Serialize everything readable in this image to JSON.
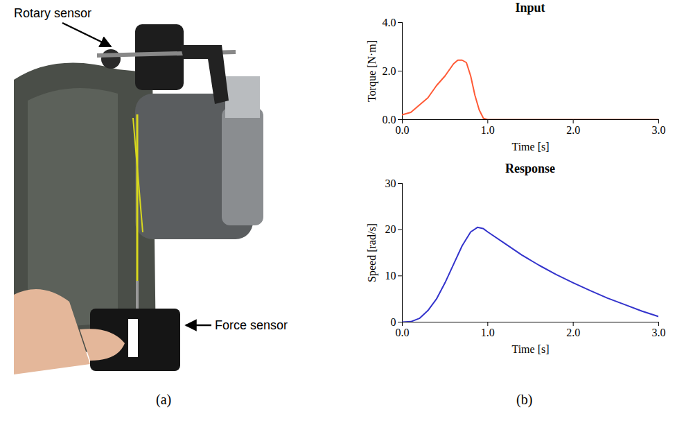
{
  "photo": {
    "annotations": [
      "Rotary sensor",
      "Force sensor"
    ]
  },
  "panel_labels": [
    "(a)",
    "(b)"
  ],
  "chart_data": [
    {
      "type": "line",
      "title": "Input",
      "xlabel": "Time [s]",
      "ylabel": "Torque [N·m]",
      "x": [
        0,
        0.1,
        0.2,
        0.3,
        0.4,
        0.5,
        0.6,
        0.65,
        0.7,
        0.75,
        0.8,
        0.85,
        0.9,
        0.95,
        1.0,
        1.5,
        2.0,
        2.5,
        3.0
      ],
      "values": [
        0.2,
        0.3,
        0.6,
        0.9,
        1.4,
        1.8,
        2.3,
        2.45,
        2.45,
        2.35,
        1.8,
        1.0,
        0.4,
        0.05,
        0,
        0,
        0,
        0,
        0
      ],
      "color": "#ff5a36",
      "xlim": [
        0,
        3
      ],
      "xticks": [
        0,
        1,
        2,
        3
      ],
      "ylim": [
        0,
        4
      ],
      "yticks": [
        0,
        2,
        4
      ],
      "grid": false
    },
    {
      "type": "line",
      "title": "Response",
      "xlabel": "Time [s]",
      "ylabel": "Speed [rad/s]",
      "x": [
        0,
        0.1,
        0.2,
        0.3,
        0.4,
        0.5,
        0.6,
        0.7,
        0.8,
        0.88,
        0.95,
        1.0,
        1.2,
        1.4,
        1.6,
        1.8,
        2.0,
        2.2,
        2.4,
        2.6,
        2.8,
        3.0
      ],
      "values": [
        0,
        0.1,
        0.8,
        2.5,
        5,
        8.5,
        12.5,
        16.5,
        19.5,
        20.5,
        20.2,
        19.5,
        17,
        14.5,
        12.3,
        10.3,
        8.5,
        6.8,
        5.2,
        3.8,
        2.4,
        1.2
      ],
      "color": "#3333cc",
      "xlim": [
        0,
        3
      ],
      "xticks": [
        0,
        1,
        2,
        3
      ],
      "ylim": [
        0,
        30
      ],
      "yticks": [
        0,
        10,
        20,
        30
      ],
      "grid": false
    }
  ]
}
